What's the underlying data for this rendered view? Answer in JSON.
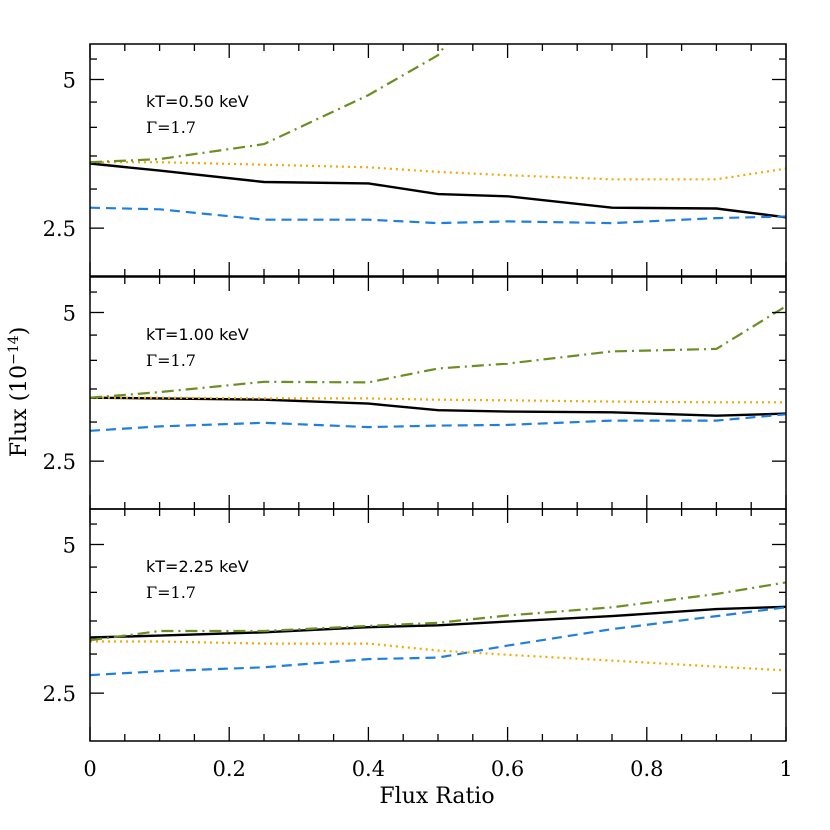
{
  "chart_data": {
    "type": "line",
    "xlabel": "Flux Ratio",
    "ylabel": "Flux (10",
    "ylabel_exp": "−14",
    "ylabel_close": ")",
    "xlim": [
      0,
      1
    ],
    "ylim": [
      2.0,
      5.9
    ],
    "y_scale": "log",
    "x_tick_labels": [
      "0",
      "0.2",
      "0.4",
      "0.6",
      "0.8",
      "1"
    ],
    "x_ticks": [
      0,
      0.2,
      0.4,
      0.6,
      0.8,
      1
    ],
    "y_tick_labels": [
      "5",
      "2.5"
    ],
    "y_ticks": [
      5,
      2.5
    ],
    "x": [
      0,
      0.1,
      0.25,
      0.4,
      0.5,
      0.6,
      0.75,
      0.9,
      1.0
    ],
    "series_styles": [
      {
        "key": "solid",
        "color": "#000000",
        "dash": ""
      },
      {
        "key": "dashed",
        "color": "#1f7fe0",
        "dash": "10,6"
      },
      {
        "key": "dotted",
        "color": "#f5a800",
        "dash": "2,4"
      },
      {
        "key": "dashdot",
        "color": "#6b8e23",
        "dash": "12,5,2,5"
      }
    ],
    "panels": [
      {
        "kT_label": "kT=0.50 keV",
        "gamma_symbol": "Γ",
        "gamma_value": "=1.7",
        "series": [
          {
            "style": "solid",
            "values": [
              3.38,
              3.27,
              3.1,
              3.08,
              2.93,
              2.9,
              2.75,
              2.74,
              2.63
            ]
          },
          {
            "style": "dashed",
            "values": [
              2.75,
              2.73,
              2.6,
              2.6,
              2.56,
              2.58,
              2.56,
              2.62,
              2.64
            ]
          },
          {
            "style": "dotted",
            "values": [
              3.4,
              3.4,
              3.36,
              3.32,
              3.25,
              3.2,
              3.14,
              3.14,
              3.3
            ]
          },
          {
            "style": "dashdot",
            "values": [
              3.4,
              3.45,
              3.7,
              4.65,
              5.6,
              null,
              null,
              null,
              null
            ]
          }
        ]
      },
      {
        "kT_label": "kT=1.00 keV",
        "gamma_symbol": "Γ",
        "gamma_value": "=1.7",
        "series": [
          {
            "style": "solid",
            "values": [
              3.36,
              3.35,
              3.33,
              3.27,
              3.17,
              3.15,
              3.14,
              3.09,
              3.12
            ]
          },
          {
            "style": "dashed",
            "values": [
              2.88,
              2.94,
              2.99,
              2.93,
              2.95,
              2.96,
              3.02,
              3.02,
              3.11
            ]
          },
          {
            "style": "dotted",
            "values": [
              3.36,
              3.36,
              3.35,
              3.35,
              3.33,
              3.32,
              3.3,
              3.29,
              3.29
            ]
          },
          {
            "style": "dashdot",
            "values": [
              3.36,
              3.45,
              3.62,
              3.61,
              3.85,
              3.94,
              4.17,
              4.22,
              5.15
            ]
          }
        ]
      },
      {
        "kT_label": "kT=2.25 keV",
        "gamma_symbol": "Γ",
        "gamma_value": "=1.7",
        "series": [
          {
            "style": "solid",
            "values": [
              3.24,
              3.27,
              3.32,
              3.4,
              3.43,
              3.49,
              3.58,
              3.7,
              3.74
            ]
          },
          {
            "style": "dashed",
            "values": [
              2.72,
              2.77,
              2.82,
              2.93,
              2.95,
              3.12,
              3.37,
              3.58,
              3.73
            ]
          },
          {
            "style": "dotted",
            "values": [
              3.18,
              3.18,
              3.15,
              3.15,
              3.05,
              2.99,
              2.91,
              2.83,
              2.78
            ]
          },
          {
            "style": "dashdot",
            "values": [
              3.2,
              3.34,
              3.34,
              3.42,
              3.47,
              3.59,
              3.73,
              3.97,
              4.19
            ]
          }
        ]
      }
    ]
  }
}
